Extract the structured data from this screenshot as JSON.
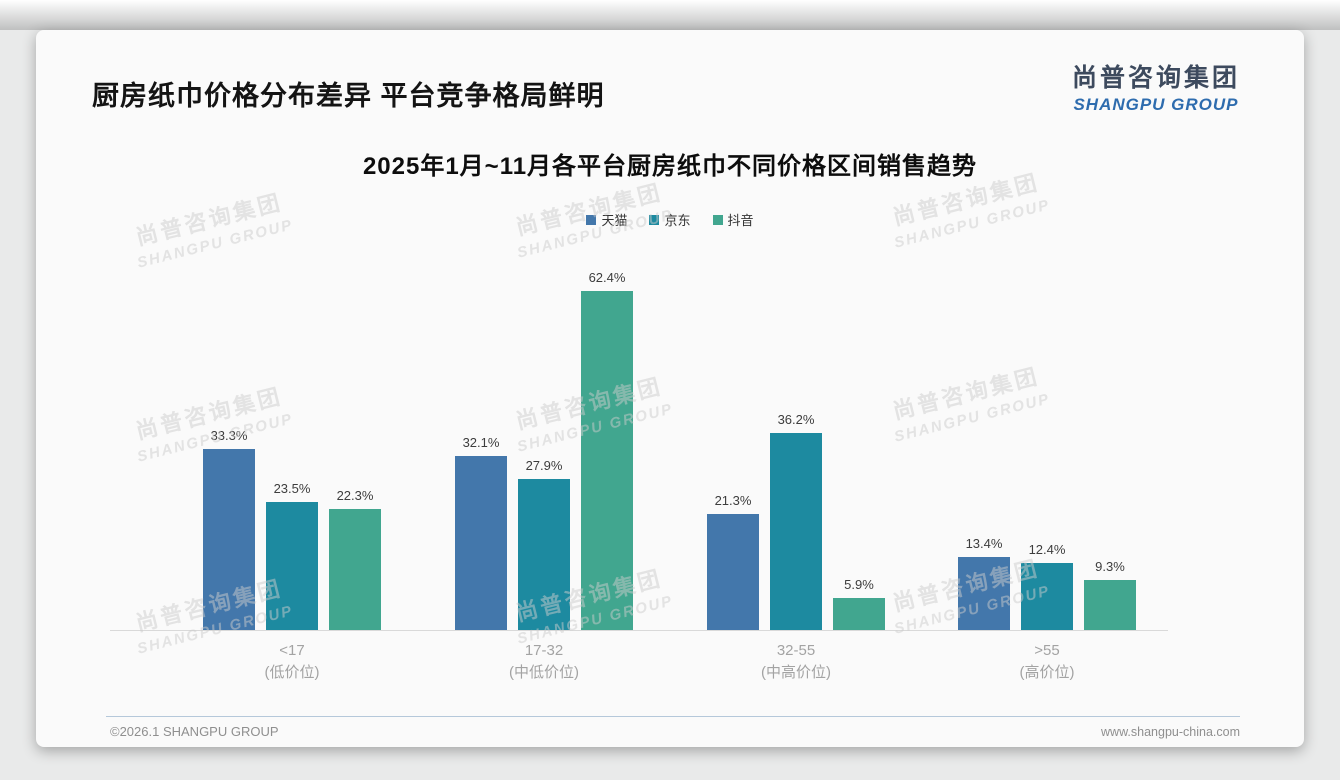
{
  "page": {
    "slide_title": "厨房纸巾价格分布差异 平台竞争格局鲜明",
    "logo": {
      "cn": "尚普咨询集团",
      "en": "SHANGPU GROUP"
    },
    "watermark": {
      "cn": "尚普咨询集团",
      "en": "SHANGPU GROUP"
    },
    "footer": {
      "left": "©2026.1 SHANGPU GROUP",
      "right": "www.shangpu-china.com"
    }
  },
  "chart_data": {
    "type": "bar",
    "title": "2025年1月~11月各平台厨房纸巾不同价格区间销售趋势",
    "categories": [
      "<17",
      "17-32",
      "32-55",
      ">55"
    ],
    "category_sublabels": [
      "(低价位)",
      "(中低价位)",
      "(中高价位)",
      "(高价位)"
    ],
    "series": [
      {
        "name": "天猫",
        "color": "#4377ab",
        "values": [
          33.3,
          32.1,
          21.3,
          13.4
        ]
      },
      {
        "name": "京东",
        "color": "#1d8aa0",
        "values": [
          23.5,
          27.9,
          36.2,
          12.4
        ]
      },
      {
        "name": "抖音",
        "color": "#41a68f",
        "values": [
          22.3,
          62.4,
          5.9,
          9.3
        ]
      }
    ],
    "value_suffix": "%",
    "xlabel": "",
    "ylabel": "",
    "ylim": [
      0,
      66
    ],
    "grid": false,
    "legend_position": "top",
    "data_labels": true
  }
}
